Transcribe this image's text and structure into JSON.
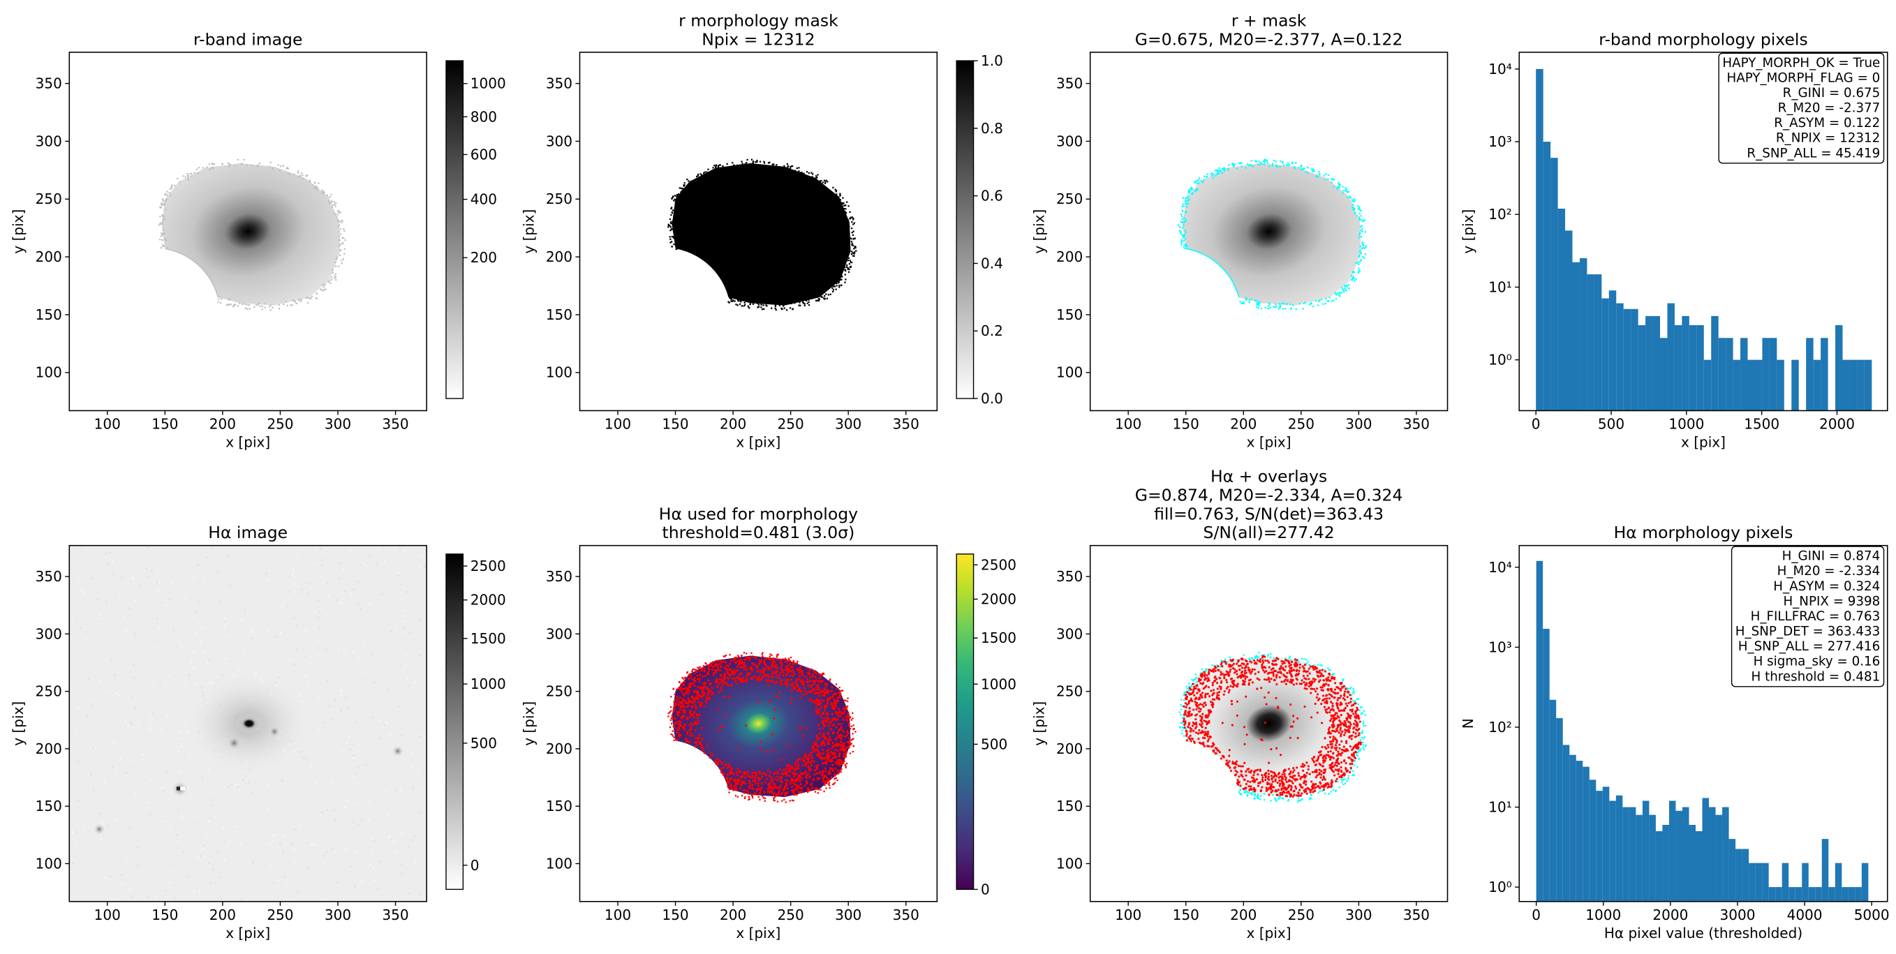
{
  "chart_data": [
    {
      "type": "image",
      "title": [
        "r-band image"
      ],
      "xlabel": "x [pix]",
      "ylabel": "y [pix]",
      "xlim": [
        67,
        377
      ],
      "ylim": [
        67,
        377
      ],
      "xticks": [
        100,
        150,
        200,
        250,
        300,
        350
      ],
      "yticks": [
        100,
        150,
        200,
        250,
        300,
        350
      ],
      "cmap": "gray_r",
      "colorbar": {
        "scale": "sqrt",
        "lim": [
          0,
          1150
        ],
        "ticks": [
          200,
          400,
          600,
          800,
          1000
        ]
      }
    },
    {
      "type": "image",
      "title": [
        "r morphology mask",
        "Npix = 12312"
      ],
      "xlabel": "x [pix]",
      "ylabel": "y [pix]",
      "xlim": [
        67,
        377
      ],
      "ylim": [
        67,
        377
      ],
      "xticks": [
        100,
        150,
        200,
        250,
        300,
        350
      ],
      "yticks": [
        100,
        150,
        200,
        250,
        300,
        350
      ],
      "cmap": "gray_r",
      "colorbar": {
        "scale": "linear",
        "lim": [
          0,
          1
        ],
        "ticks": [
          {
            "value": 0,
            "label": "0.0"
          },
          0.2,
          0.4,
          0.6,
          0.8,
          {
            "value": 1,
            "label": "1.0"
          }
        ]
      }
    },
    {
      "type": "image",
      "title": [
        "r + mask",
        "G=0.675, M20=-2.377, A=0.122"
      ],
      "xlabel": "x [pix]",
      "ylabel": "y [pix]",
      "xlim": [
        67,
        377
      ],
      "ylim": [
        67,
        377
      ],
      "xticks": [
        100,
        150,
        200,
        250,
        300,
        350
      ],
      "yticks": [
        100,
        150,
        200,
        250,
        300,
        350
      ],
      "cmap": "gray_r",
      "overlay_colors": [
        "#00ffff"
      ]
    },
    {
      "type": "histogram",
      "title": [
        "r-band morphology pixels"
      ],
      "xlabel": "x [pix]",
      "ylabel": "y [pix]",
      "color": "#1f77b4",
      "log_y": true,
      "xlim": [
        -111,
        2335
      ],
      "ylim": [
        0.2,
        17000
      ],
      "xticks": [
        0,
        500,
        1000,
        1500,
        2000
      ],
      "yticks": [
        {
          "value": 1,
          "label": "10⁰"
        },
        {
          "value": 10,
          "label": "10¹"
        },
        {
          "value": 100,
          "label": "10²"
        },
        {
          "value": 1000,
          "label": "10³"
        },
        {
          "value": 10000,
          "label": "10⁴"
        }
      ],
      "bins": [
        0,
        48.5,
        97,
        145.5,
        194,
        242.5,
        291,
        339.5,
        388,
        436.5,
        485,
        533.5,
        582,
        630.5,
        679,
        727.5,
        776,
        824.5,
        873,
        921.5,
        970,
        1018.5,
        1067,
        1115.5,
        1164,
        1212.5,
        1261,
        1309.5,
        1358,
        1406.5,
        1455,
        1503.5,
        1552,
        1600.5,
        1649,
        1697.5,
        1746,
        1794.5,
        1843,
        1891.5,
        1940,
        1988.5,
        2037,
        2085.5,
        2134,
        2182.5,
        2231
      ],
      "values": [
        10000,
        1000,
        600,
        120,
        60,
        22,
        25,
        15,
        15,
        7,
        9,
        6,
        5,
        5,
        3,
        4,
        4,
        2,
        6,
        3,
        4,
        3,
        3,
        1,
        4,
        2,
        2,
        1,
        2,
        1,
        1,
        2,
        2,
        1,
        0,
        1,
        0,
        2,
        1,
        2,
        0,
        3,
        1,
        1,
        1,
        1
      ],
      "annotation_corner": "upper right",
      "annotation": [
        "HAPY_MORPH_OK = True",
        "HAPY_MORPH_FLAG = 0",
        "R_GINI = 0.675",
        "R_M20 = -2.377",
        "R_ASYM = 0.122",
        "R_NPIX = 12312",
        "R_SNP_ALL = 45.419"
      ]
    },
    {
      "type": "image",
      "title": [
        "Hα image"
      ],
      "xlabel": "x [pix]",
      "ylabel": "y [pix]",
      "xlim": [
        67,
        377
      ],
      "ylim": [
        67,
        377
      ],
      "xticks": [
        100,
        150,
        200,
        250,
        300,
        350
      ],
      "yticks": [
        100,
        150,
        200,
        250,
        300,
        350
      ],
      "cmap": "gray_r",
      "colorbar": {
        "scale": "sqrt",
        "lim": [
          -14,
          2690
        ],
        "ticks": [
          0,
          500,
          1000,
          1500,
          2000,
          2500
        ]
      }
    },
    {
      "type": "image",
      "title": [
        "Hα used for morphology",
        "threshold=0.481 (3.0σ)"
      ],
      "xlabel": "x [pix]",
      "ylabel": "y [pix]",
      "xlim": [
        67,
        377
      ],
      "ylim": [
        67,
        377
      ],
      "xticks": [
        100,
        150,
        200,
        250,
        300,
        350
      ],
      "yticks": [
        100,
        150,
        200,
        250,
        300,
        350
      ],
      "cmap": "viridis",
      "overlay_colors": [
        "#ff0000"
      ],
      "colorbar": {
        "scale": "sqrt",
        "lim": [
          0,
          2670
        ],
        "ticks": [
          0,
          500,
          1000,
          1500,
          2000,
          2500
        ]
      }
    },
    {
      "type": "image",
      "title": [
        "Hα + overlays",
        "G=0.874, M20=-2.334, A=0.324",
        "fill=0.763, S/N(det)=363.43",
        "S/N(all)=277.42"
      ],
      "xlabel": "x [pix]",
      "ylabel": "y [pix]",
      "xlim": [
        67,
        377
      ],
      "ylim": [
        67,
        377
      ],
      "xticks": [
        100,
        150,
        200,
        250,
        300,
        350
      ],
      "yticks": [
        100,
        150,
        200,
        250,
        300,
        350
      ],
      "cmap": "gray_r",
      "overlay_colors": [
        "#ff0000",
        "#00ffff"
      ]
    },
    {
      "type": "histogram",
      "title": [
        "Hα morphology pixels"
      ],
      "xlabel": "Hα pixel value (thresholded)",
      "ylabel": "N",
      "color": "#1f77b4",
      "log_y": true,
      "xlim": [
        -254,
        5235
      ],
      "ylim": [
        0.66,
        18700
      ],
      "xticks": [
        0,
        1000,
        2000,
        3000,
        4000,
        5000
      ],
      "yticks": [
        {
          "value": 1,
          "label": "10⁰"
        },
        {
          "value": 10,
          "label": "10¹"
        },
        {
          "value": 100,
          "label": "10²"
        },
        {
          "value": 1000,
          "label": "10³"
        },
        {
          "value": 10000,
          "label": "10⁴"
        }
      ],
      "bins": [
        0,
        99,
        198,
        297,
        396,
        495,
        594,
        693,
        792,
        891,
        990,
        1089,
        1188,
        1287,
        1386,
        1485,
        1584,
        1683,
        1782,
        1881,
        1980,
        2079,
        2178,
        2277,
        2376,
        2475,
        2574,
        2673,
        2772,
        2871,
        2970,
        3069,
        3168,
        3267,
        3366,
        3465,
        3564,
        3663,
        3762,
        3861,
        3960,
        4059,
        4158,
        4257,
        4356,
        4455,
        4554,
        4653,
        4752,
        4851,
        4950
      ],
      "values": [
        12000,
        1700,
        220,
        130,
        60,
        45,
        38,
        32,
        22,
        16,
        18,
        12,
        14,
        10,
        10,
        8,
        12,
        8,
        5,
        6,
        12,
        9,
        10,
        6,
        5,
        13,
        10,
        8,
        10,
        4,
        3,
        3,
        2,
        2,
        2,
        1,
        1,
        2,
        1,
        1,
        2,
        1,
        1,
        4,
        1,
        2,
        1,
        1,
        1,
        2
      ],
      "annotation_corner": "upper right",
      "annotation": [
        "H_GINI = 0.874",
        "H_M20 = -2.334",
        "H_ASYM = 0.324",
        "H_NPIX = 9398",
        "H_FILLFRAC = 0.763",
        "H_SNP_DET = 363.433",
        "H_SNP_ALL = 277.416",
        "H sigma_sky = 0.16",
        "H threshold = 0.481"
      ]
    }
  ]
}
